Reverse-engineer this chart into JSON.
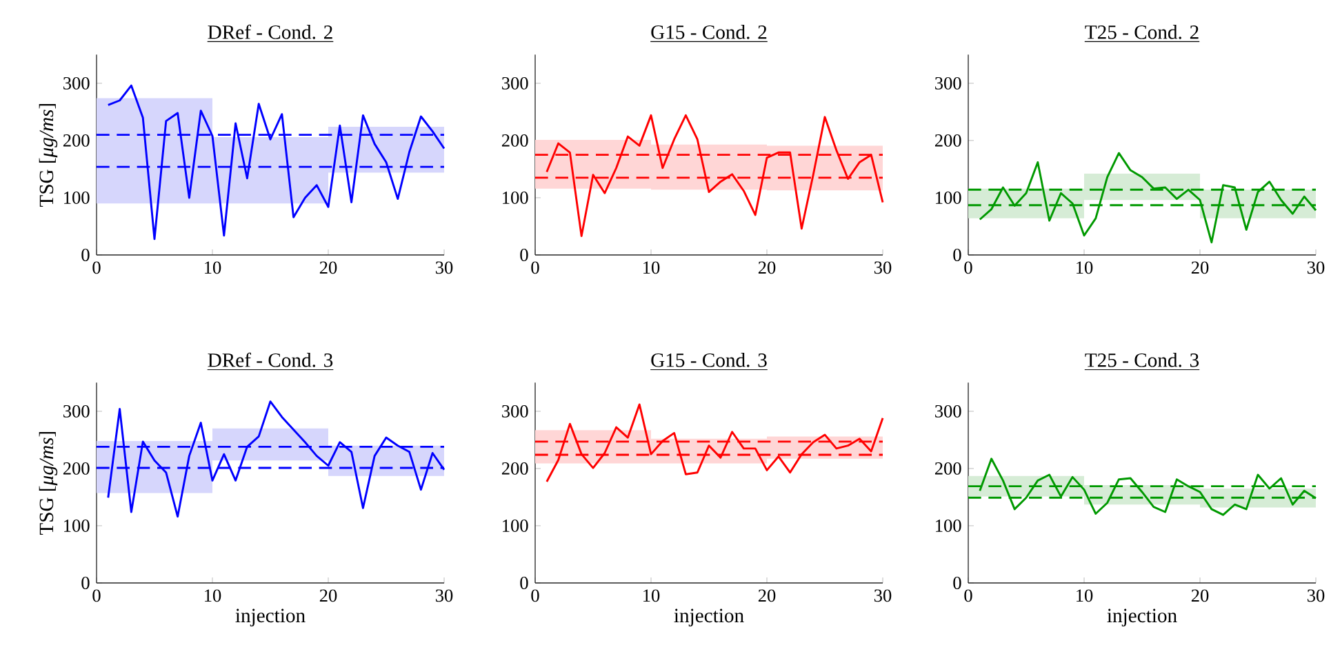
{
  "chart_data": [
    {
      "type": "line",
      "title": "DRef - Cond. 2",
      "ylabel": "TSG [*μg/ms*]",
      "xlim": [
        0,
        30
      ],
      "ylim": [
        0,
        350
      ],
      "xticks": [
        0,
        10,
        20,
        30
      ],
      "yticks": [
        0,
        100,
        200,
        300
      ],
      "marker": "none",
      "line_style": "solid",
      "x": [
        1,
        2,
        3,
        4,
        5,
        6,
        7,
        8,
        9,
        10,
        11,
        12,
        13,
        14,
        15,
        16,
        17,
        18,
        19,
        20,
        21,
        22,
        23,
        24,
        25,
        26,
        27,
        28,
        29,
        30
      ],
      "series": [
        {
          "type": "bar",
          "color": "#d6d6fc",
          "x": [
            5,
            15,
            25
          ],
          "base": [
            90,
            90,
            144
          ],
          "values": [
            184,
            116,
            80
          ]
        },
        {
          "color": "#0000ff",
          "values": [
            262,
            270,
            296,
            240,
            28,
            234,
            248,
            100,
            252,
            208,
            34,
            230,
            134,
            264,
            202,
            246,
            66,
            100,
            122,
            84,
            226,
            92,
            244,
            194,
            162,
            98,
            180,
            242,
            216,
            186
          ]
        }
      ],
      "ref_lines": [
        {
          "axis": "y",
          "value": 210,
          "color": "#0000ff",
          "line_style": "dashed"
        },
        {
          "axis": "y",
          "value": 154,
          "color": "#0000ff",
          "line_style": "dashed"
        }
      ]
    },
    {
      "type": "line",
      "title": "G15 - Cond. 2",
      "xlim": [
        0,
        30
      ],
      "ylim": [
        0,
        350
      ],
      "xticks": [
        0,
        10,
        20,
        30
      ],
      "yticks": [
        0,
        100,
        200,
        300
      ],
      "marker": "none",
      "line_style": "solid",
      "x": [
        1,
        2,
        3,
        4,
        5,
        6,
        7,
        8,
        9,
        10,
        11,
        12,
        13,
        14,
        15,
        16,
        17,
        18,
        19,
        20,
        21,
        22,
        23,
        24,
        25,
        26,
        27,
        28,
        29,
        30
      ],
      "series": [
        {
          "type": "bar",
          "color": "#ffd6d6",
          "x": [
            5,
            15,
            25
          ],
          "base": [
            116,
            114,
            113
          ],
          "values": [
            85,
            79,
            78
          ]
        },
        {
          "color": "#ff0000",
          "values": [
            145,
            195,
            179,
            33,
            140,
            108,
            152,
            207,
            191,
            244,
            152,
            202,
            244,
            202,
            110,
            128,
            141,
            112,
            70,
            170,
            179,
            179,
            46,
            140,
            241,
            183,
            133,
            162,
            175,
            92
          ]
        }
      ],
      "ref_lines": [
        {
          "axis": "y",
          "value": 175,
          "color": "#ff0000",
          "line_style": "dashed"
        },
        {
          "axis": "y",
          "value": 135,
          "color": "#ff0000",
          "line_style": "dashed"
        }
      ]
    },
    {
      "type": "line",
      "title": "T25 - Cond. 2",
      "xlim": [
        0,
        30
      ],
      "ylim": [
        0,
        350
      ],
      "xticks": [
        0,
        10,
        20,
        30
      ],
      "yticks": [
        0,
        100,
        200,
        300
      ],
      "marker": "none",
      "line_style": "solid",
      "x": [
        1,
        2,
        3,
        4,
        5,
        6,
        7,
        8,
        9,
        10,
        11,
        12,
        13,
        14,
        15,
        16,
        17,
        18,
        19,
        20,
        21,
        22,
        23,
        24,
        25,
        26,
        27,
        28,
        29,
        30
      ],
      "series": [
        {
          "type": "bar",
          "color": "#d6ecd6",
          "x": [
            5,
            15,
            25
          ],
          "base": [
            64,
            96,
            64
          ],
          "values": [
            52,
            46,
            50
          ]
        },
        {
          "color": "#009900",
          "values": [
            62,
            80,
            118,
            86,
            108,
            162,
            60,
            108,
            90,
            34,
            64,
            136,
            178,
            148,
            136,
            116,
            118,
            98,
            114,
            96,
            22,
            122,
            118,
            44,
            110,
            128,
            96,
            72,
            102,
            78
          ]
        }
      ],
      "ref_lines": [
        {
          "axis": "y",
          "value": 114,
          "color": "#009900",
          "line_style": "dashed"
        },
        {
          "axis": "y",
          "value": 87,
          "color": "#009900",
          "line_style": "dashed"
        }
      ]
    },
    {
      "type": "line",
      "title": "DRef - Cond. 3",
      "ylabel": "TSG [*μg/ms*]",
      "xlabel": "injection",
      "xlim": [
        0,
        30
      ],
      "ylim": [
        0,
        350
      ],
      "xticks": [
        0,
        10,
        20,
        30
      ],
      "yticks": [
        0,
        100,
        200,
        300
      ],
      "marker": "none",
      "line_style": "solid",
      "x": [
        1,
        2,
        3,
        4,
        5,
        6,
        7,
        8,
        9,
        10,
        11,
        12,
        13,
        14,
        15,
        16,
        17,
        18,
        19,
        20,
        21,
        22,
        23,
        24,
        25,
        26,
        27,
        28,
        29,
        30
      ],
      "series": [
        {
          "type": "bar",
          "color": "#d6d6fc",
          "x": [
            5,
            15,
            25
          ],
          "base": [
            157,
            214,
            187
          ],
          "values": [
            91,
            56,
            53
          ]
        },
        {
          "color": "#0000ff",
          "values": [
            149,
            304,
            124,
            247,
            214,
            193,
            116,
            222,
            280,
            179,
            225,
            179,
            238,
            256,
            317,
            290,
            268,
            246,
            222,
            205,
            246,
            229,
            131,
            222,
            254,
            240,
            229,
            163,
            227,
            198
          ]
        }
      ],
      "ref_lines": [
        {
          "axis": "y",
          "value": 238,
          "color": "#0000ff",
          "line_style": "dashed"
        },
        {
          "axis": "y",
          "value": 201,
          "color": "#0000ff",
          "line_style": "dashed"
        }
      ]
    },
    {
      "type": "line",
      "title": "G15 - Cond. 3",
      "xlabel": "injection",
      "xlim": [
        0,
        30
      ],
      "ylim": [
        0,
        350
      ],
      "xticks": [
        0,
        10,
        20,
        30
      ],
      "yticks": [
        0,
        100,
        200,
        300
      ],
      "marker": "none",
      "line_style": "solid",
      "x": [
        1,
        2,
        3,
        4,
        5,
        6,
        7,
        8,
        9,
        10,
        11,
        12,
        13,
        14,
        15,
        16,
        17,
        18,
        19,
        20,
        21,
        22,
        23,
        24,
        25,
        26,
        27,
        28,
        29,
        30
      ],
      "series": [
        {
          "type": "bar",
          "color": "#ffd6d6",
          "x": [
            5,
            15,
            25
          ],
          "base": [
            209,
            209,
            217
          ],
          "values": [
            58,
            43,
            39
          ]
        },
        {
          "color": "#ff0000",
          "values": [
            177,
            215,
            278,
            225,
            201,
            227,
            272,
            254,
            312,
            225,
            248,
            262,
            190,
            193,
            240,
            219,
            264,
            235,
            235,
            197,
            221,
            193,
            225,
            246,
            259,
            235,
            240,
            252,
            230,
            288
          ]
        }
      ],
      "ref_lines": [
        {
          "axis": "y",
          "value": 247,
          "color": "#ff0000",
          "line_style": "dashed"
        },
        {
          "axis": "y",
          "value": 224,
          "color": "#ff0000",
          "line_style": "dashed"
        }
      ]
    },
    {
      "type": "line",
      "title": "T25 - Cond. 3",
      "xlabel": "injection",
      "xlim": [
        0,
        30
      ],
      "ylim": [
        0,
        350
      ],
      "xticks": [
        0,
        10,
        20,
        30
      ],
      "yticks": [
        0,
        100,
        200,
        300
      ],
      "marker": "none",
      "line_style": "solid",
      "x": [
        1,
        2,
        3,
        4,
        5,
        6,
        7,
        8,
        9,
        10,
        11,
        12,
        13,
        14,
        15,
        16,
        17,
        18,
        19,
        20,
        21,
        22,
        23,
        24,
        25,
        26,
        27,
        28,
        29,
        30
      ],
      "series": [
        {
          "type": "bar",
          "color": "#d6ecd6",
          "x": [
            5,
            15,
            25
          ],
          "base": [
            151,
            137,
            132
          ],
          "values": [
            36,
            34,
            33
          ]
        },
        {
          "color": "#009900",
          "values": [
            161,
            217,
            179,
            129,
            149,
            179,
            189,
            151,
            185,
            163,
            121,
            140,
            181,
            183,
            159,
            133,
            124,
            181,
            169,
            159,
            129,
            119,
            137,
            129,
            189,
            165,
            183,
            137,
            161,
            148
          ]
        }
      ],
      "ref_lines": [
        {
          "axis": "y",
          "value": 169,
          "color": "#009900",
          "line_style": "dashed"
        },
        {
          "axis": "y",
          "value": 149,
          "color": "#009900",
          "line_style": "dashed"
        }
      ]
    }
  ]
}
